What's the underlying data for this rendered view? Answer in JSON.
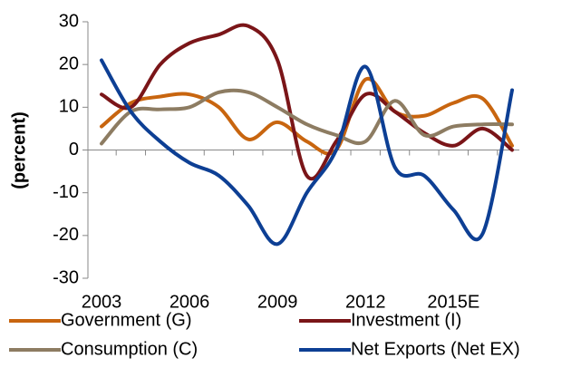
{
  "chart_data": {
    "type": "line",
    "ylabel": "(percent)",
    "categories": [
      "2003",
      null,
      null,
      "2006",
      null,
      null,
      "2009",
      null,
      null,
      "2012",
      null,
      null,
      "2015E",
      null,
      null
    ],
    "series": [
      {
        "name": "Government (G)",
        "color": "#c8650f",
        "values": [
          5.5,
          11,
          12.5,
          13,
          10,
          2.5,
          6.5,
          2,
          0,
          16.5,
          9,
          8,
          11,
          12,
          1
        ]
      },
      {
        "name": "Investment (I)",
        "color": "#7a1518",
        "values": [
          13,
          10,
          20,
          25,
          27,
          29,
          21,
          -6,
          2,
          13,
          9,
          4,
          1,
          5,
          0
        ]
      },
      {
        "name": "Consumption (C)",
        "color": "#8d7c62",
        "values": [
          1.5,
          9,
          9.5,
          10,
          13.5,
          13.5,
          10,
          6,
          3.5,
          2,
          11.5,
          3.5,
          5.5,
          6,
          6
        ]
      },
      {
        "name": "Net Exports (Net EX)",
        "color": "#0d3f94",
        "values": [
          21,
          9,
          2,
          -3,
          -6,
          -13,
          -22,
          -10,
          0,
          19.5,
          -4,
          -6,
          -14,
          -19.5,
          14
        ]
      }
    ],
    "ylim": [
      -30,
      30
    ],
    "yticks": [
      -30,
      -20,
      -10,
      0,
      10,
      20,
      30
    ]
  }
}
